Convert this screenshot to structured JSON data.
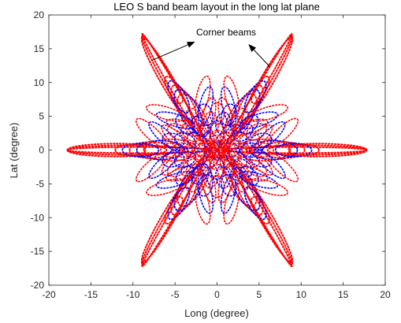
{
  "chart_data": {
    "type": "scatter",
    "title": "LEO S band beam layout in the long lat plane",
    "xlabel": "Long (degree)",
    "ylabel": "Lat (degree)",
    "xlim": [
      -20,
      20
    ],
    "ylim": [
      -20,
      20
    ],
    "xticks": [
      "-20",
      "-15",
      "-10",
      "-5",
      "0",
      "5",
      "10",
      "15",
      "20"
    ],
    "yticks": [
      "-20",
      "-15",
      "-10",
      "-5",
      "0",
      "5",
      "10",
      "15",
      "20"
    ],
    "grid": false,
    "series": [
      {
        "marker": "dotted outline",
        "color": "#ff0000",
        "beam_centers": [
          [
            0,
            0
          ],
          [
            17.8,
            0
          ],
          [
            -17.8,
            0
          ],
          [
            9.1,
            15.3
          ],
          [
            -9.1,
            15.3
          ],
          [
            9.1,
            -15.3
          ],
          [
            -9.1,
            -15.3
          ]
        ],
        "note": "many overlapping beam contours forming a six-pointed star"
      },
      {
        "marker": "dotted outline",
        "color": "#0000ff",
        "note": "inner beam contours"
      }
    ],
    "annotations": [
      {
        "text": "Corner beams",
        "x": 0,
        "y": 17,
        "arrows_to": [
          [
            -2.8,
            16.2
          ],
          [
            3.8,
            15.6
          ]
        ]
      }
    ]
  },
  "colors": {
    "primary": "#ff0000",
    "secondary": "#0000ff",
    "axis": "#262626"
  }
}
